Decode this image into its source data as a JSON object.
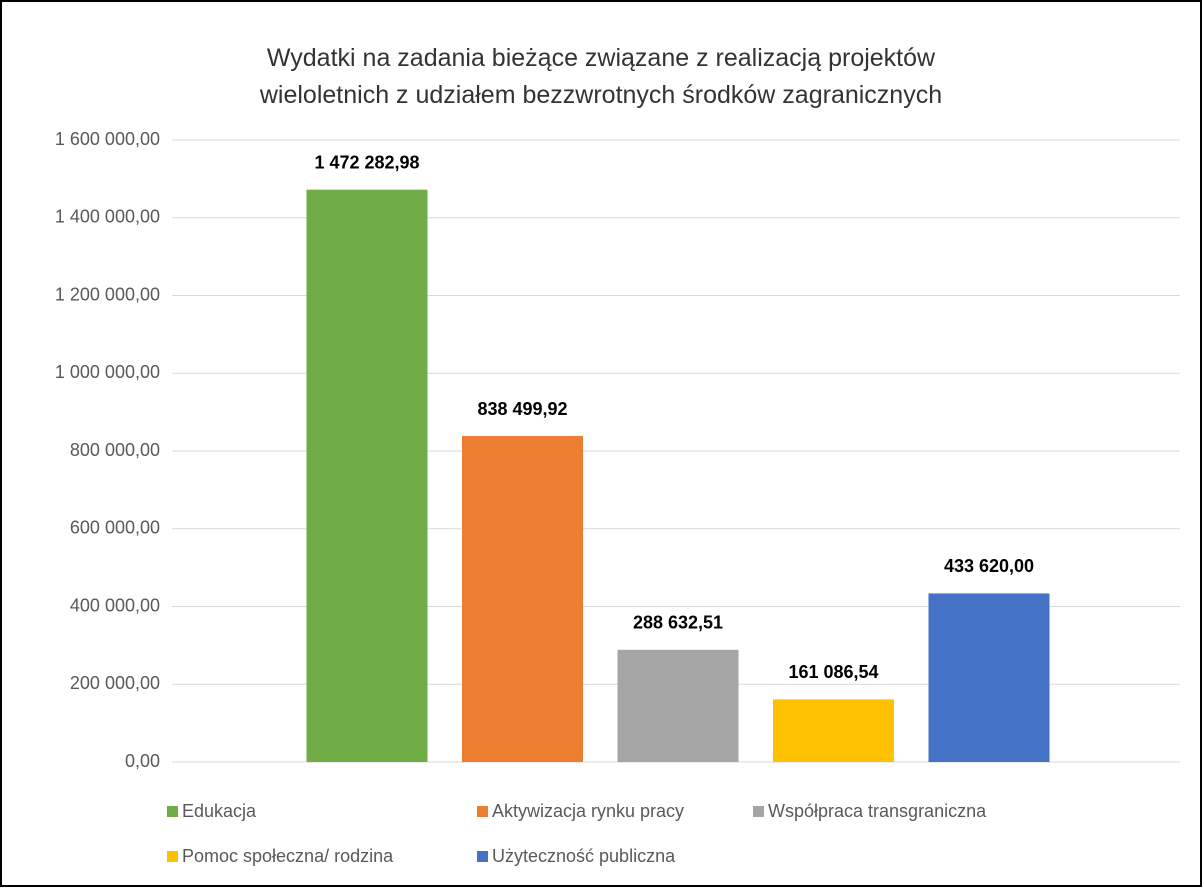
{
  "chart_data": {
    "type": "bar",
    "title": "Wydatki na zadania bieżące związane z realizacją projektów wieloletnich z udziałem bezzwrotnych środków zagranicznych",
    "categories": [
      null
    ],
    "series": [
      {
        "name": "Edukacja",
        "color": "#70ad47",
        "values": [
          1472282.98
        ],
        "value_labels": [
          "1 472 282,98"
        ]
      },
      {
        "name": "Aktywizacja rynku pracy",
        "color": "#ed7d31",
        "values": [
          838499.92
        ],
        "value_labels": [
          "838 499,92"
        ]
      },
      {
        "name": "Współpraca transgraniczna",
        "color": "#a5a5a5",
        "values": [
          288632.51
        ],
        "value_labels": [
          "288 632,51"
        ]
      },
      {
        "name": "Pomoc społeczna/ rodzina",
        "color": "#ffc000",
        "values": [
          161086.54
        ],
        "value_labels": [
          "161 086,54"
        ]
      },
      {
        "name": "Użyteczność publiczna",
        "color": "#4472c4",
        "values": [
          433620
        ],
        "value_labels": [
          "433 620,00"
        ]
      }
    ],
    "ylim": [
      0,
      1600000
    ],
    "yticks": [
      {
        "value": 0,
        "label": "0,00"
      },
      {
        "value": 200000,
        "label": "200 000,00"
      },
      {
        "value": 400000,
        "label": "400 000,00"
      },
      {
        "value": 600000,
        "label": "600 000,00"
      },
      {
        "value": 800000,
        "label": "800 000,00"
      },
      {
        "value": 1000000,
        "label": "1 000 000,00"
      },
      {
        "value": 1200000,
        "label": "1 200 000,00"
      },
      {
        "value": 1400000,
        "label": "1 400 000,00"
      },
      {
        "value": 1600000,
        "label": "1 600 000,00"
      }
    ],
    "grid": true,
    "legend": "bottom"
  }
}
